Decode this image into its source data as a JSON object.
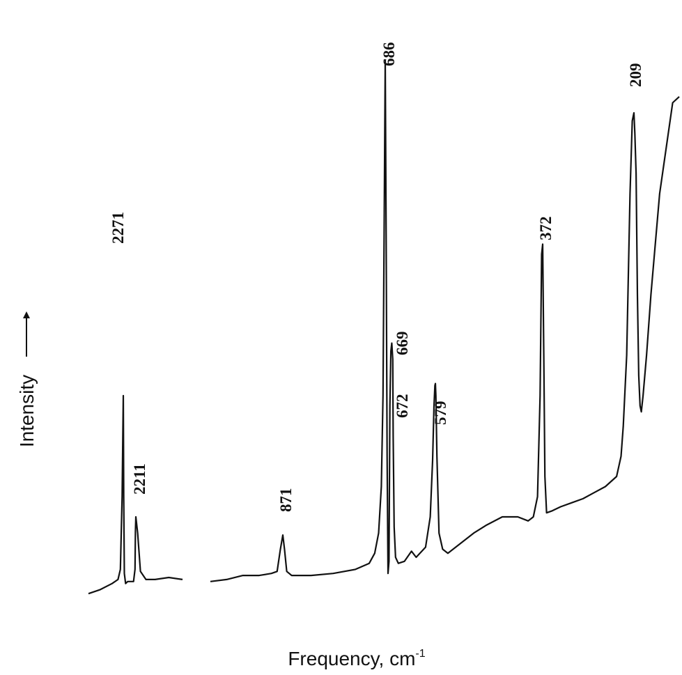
{
  "chart_data": {
    "type": "line",
    "xlabel": "Frequency, cm",
    "xlabel_superscript": "-1",
    "ylabel": "Intensity",
    "ylabel_arrow": "→",
    "x_axis_reversed": true,
    "x_axis_break": [
      2150,
      900
    ],
    "series": [
      {
        "segments": [
          {
            "x": [
              2330,
              2310,
              2290,
              2280,
              2276,
              2273,
              2271,
              2269,
              2266,
              2260,
              2250,
              2235,
              2222,
              2215,
              2213,
              2211,
              2209,
              2206,
              2200,
              2190,
              2175,
              2160
            ],
            "y": [
              2,
              4,
              7,
              9,
              14,
              50,
              100,
              50,
              12,
              7,
              8,
              8,
              8,
              14,
              33,
              40,
              32,
              13,
              9,
              9,
              10,
              9
            ]
          },
          {
            "x": [
              960,
              940,
              920,
              900,
              885,
              878,
              874,
              871,
              868,
              864,
              855,
              820,
              780,
              740,
              715,
              705,
              698,
              693,
              690,
              688,
              686,
              684,
              682,
              680,
              678,
              676,
              674,
              672,
              670,
              669,
              667,
              664,
              658,
              645,
              630,
              620,
              600,
              590,
              585,
              582,
              580,
              579,
              578,
              576,
              572,
              565,
              555,
              530,
              505,
              480,
              450,
              420,
              400,
              390,
              382,
              377,
              374,
              372,
              370,
              368,
              365,
              355,
              340,
              320,
              300,
              280,
              260,
              240,
              232,
              228,
              222,
              216,
              212,
              209,
              207,
              204,
              201,
              198,
              195,
              192,
              188,
              180,
              170,
              150,
              120,
              105
            ],
            "y": [
              8,
              9,
              11,
              11,
              12,
              13,
              24,
              31,
              24,
              13,
              11,
              11,
              12,
              14,
              17,
              22,
              32,
              55,
              100,
              180,
              266,
              180,
              70,
              12,
              18,
              95,
              122,
              126,
              118,
              80,
              35,
              20,
              17,
              18,
              23,
              20,
              25,
              40,
              68,
              95,
              105,
              106,
              100,
              70,
              32,
              24,
              22,
              27,
              32,
              36,
              40,
              40,
              38,
              40,
              50,
              100,
              170,
              175,
              120,
              60,
              42,
              43,
              45,
              47,
              49,
              52,
              55,
              60,
              70,
              85,
              120,
              200,
              236,
              240,
              230,
              210,
              150,
              110,
              95,
              92,
              100,
              120,
              150,
              200,
              245,
              248
            ]
          }
        ]
      }
    ],
    "peak_labels": [
      "2271",
      "2211",
      "871",
      "686",
      "672",
      "669",
      "579",
      "372",
      "209"
    ],
    "grid": false,
    "legend": "none"
  }
}
